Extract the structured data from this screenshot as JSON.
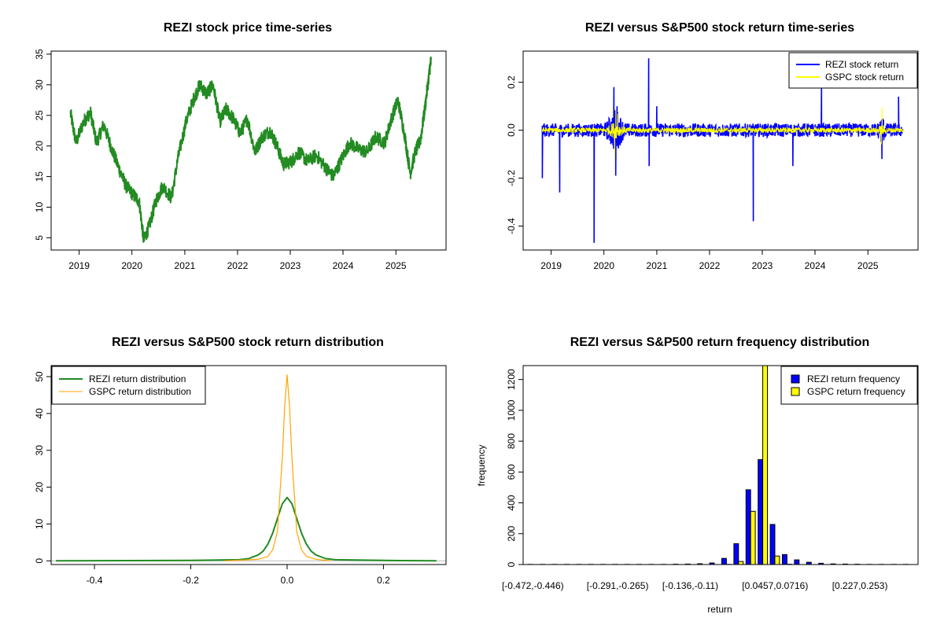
{
  "colors": {
    "price": "#228B22",
    "rezi_return": "#0000FF",
    "gspc_return": "#FFFF00",
    "rezi_density": "#228B22",
    "gspc_density": "#FFA500",
    "axis": "#000000"
  },
  "chart_data": [
    {
      "type": "line",
      "title": "REZI stock price time-series",
      "xlabel": "",
      "ylabel": "",
      "x_ticks": [
        "2019",
        "2020",
        "2021",
        "2022",
        "2023",
        "2024",
        "2025"
      ],
      "y_ticks": [
        "5",
        "10",
        "15",
        "20",
        "25",
        "30",
        "35"
      ],
      "xlim": [
        "2018-06-21",
        "2025-12-14"
      ],
      "ylim": [
        3,
        35.5
      ],
      "grid": false,
      "series": [
        {
          "color": "#228B22",
          "x": [
            "2018-11-01",
            "2018-12-10",
            "2019-02-01",
            "2019-03-20",
            "2019-05-01",
            "2019-06-20",
            "2019-08-15",
            "2019-10-01",
            "2019-11-20",
            "2020-01-10",
            "2020-02-20",
            "2020-03-23",
            "2020-05-01",
            "2020-06-15",
            "2020-08-01",
            "2020-10-01",
            "2020-11-15",
            "2021-01-10",
            "2021-03-01",
            "2021-04-15",
            "2021-06-01",
            "2021-07-15",
            "2021-09-01",
            "2021-10-15",
            "2021-12-01",
            "2022-01-20",
            "2022-03-10",
            "2022-05-01",
            "2022-06-20",
            "2022-08-15",
            "2022-10-01",
            "2022-11-15",
            "2023-01-10",
            "2023-03-01",
            "2023-05-01",
            "2023-07-01",
            "2023-09-01",
            "2023-10-25",
            "2023-12-15",
            "2024-02-15",
            "2024-04-15",
            "2024-06-15",
            "2024-08-15",
            "2024-10-15",
            "2024-12-01",
            "2025-01-15",
            "2025-03-01",
            "2025-04-10",
            "2025-05-15",
            "2025-06-20",
            "2025-07-20",
            "2025-08-20",
            "2025-09-01"
          ],
          "y": [
            25.5,
            20.5,
            24,
            25.5,
            20.5,
            23.5,
            19.5,
            16.5,
            13.5,
            12,
            11,
            4.5,
            7,
            11,
            13.5,
            11.5,
            18,
            24,
            27.5,
            30,
            28.5,
            30,
            24,
            26,
            24.5,
            22,
            24.5,
            19,
            21.5,
            22.5,
            20,
            17,
            17.5,
            19,
            17.5,
            18.5,
            16.5,
            15,
            17.5,
            20.5,
            19.5,
            19,
            21.5,
            20.5,
            24.5,
            27.5,
            22,
            15.5,
            19,
            21,
            26,
            32,
            34
          ]
        }
      ]
    },
    {
      "type": "line",
      "title": "REZI versus S&P500 stock return time-series",
      "xlabel": "",
      "ylabel": "",
      "x_ticks": [
        "2019",
        "2020",
        "2021",
        "2022",
        "2023",
        "2024",
        "2025"
      ],
      "y_ticks": [
        "-0.4",
        "-0.2",
        "0.0",
        "0.2"
      ],
      "xlim": [
        "2018-06-21",
        "2025-12-14"
      ],
      "ylim": [
        -0.5,
        0.33
      ],
      "legend": "top-right",
      "series": [
        {
          "name": "REZI stock return",
          "color": "#0000FF",
          "x": [
            "2018-11-01",
            "2019-03-01",
            "2019-10-25",
            "2020-03-10",
            "2020-03-23",
            "2020-04-01",
            "2020-11-06",
            "2020-11-09",
            "2021-01-01",
            "2022-10-31",
            "2023-08-01",
            "2024-02-15",
            "2025-04-08",
            "2025-08-01"
          ],
          "y": [
            -0.2,
            -0.26,
            -0.47,
            0.18,
            -0.19,
            0.1,
            0.3,
            -0.15,
            0.1,
            -0.38,
            -0.15,
            0.18,
            -0.12,
            0.14
          ]
        },
        {
          "name": "GSPC stock return",
          "color": "#FFFF00",
          "x": [
            "2020-03-16",
            "2020-03-24",
            "2020-04-06",
            "2025-04-04",
            "2025-04-09"
          ],
          "y": [
            -0.12,
            0.09,
            0.07,
            -0.06,
            0.095
          ]
        }
      ]
    },
    {
      "type": "line",
      "title": "REZI versus S&P500 stock return distribution",
      "xlabel": "",
      "ylabel": "",
      "x_ticks": [
        "-0.4",
        "-0.2",
        "0.0",
        "0.2"
      ],
      "y_ticks": [
        "0",
        "10",
        "20",
        "30",
        "40",
        "50"
      ],
      "xlim": [
        -0.49,
        0.33
      ],
      "ylim": [
        -1,
        53
      ],
      "legend": "top-left",
      "series": [
        {
          "name": "REZI return distribution",
          "color": "#228B22",
          "x": [
            -0.48,
            -0.2,
            -0.1,
            -0.08,
            -0.06,
            -0.05,
            -0.04,
            -0.03,
            -0.02,
            -0.01,
            0.0,
            0.01,
            0.02,
            0.03,
            0.04,
            0.05,
            0.06,
            0.08,
            0.1,
            0.2,
            0.31
          ],
          "y": [
            0,
            0.1,
            0.3,
            0.6,
            1.6,
            2.6,
            4.5,
            7.5,
            11.5,
            15.5,
            17.2,
            15.5,
            11.5,
            7.5,
            4.5,
            2.6,
            1.6,
            0.6,
            0.3,
            0.1,
            0
          ]
        },
        {
          "name": "GSPC return distribution",
          "color": "#FFA500",
          "x": [
            -0.13,
            -0.06,
            -0.04,
            -0.03,
            -0.02,
            -0.01,
            -0.005,
            0.0,
            0.005,
            0.01,
            0.02,
            0.03,
            0.04,
            0.06,
            0.09
          ],
          "y": [
            0,
            0.4,
            1.2,
            3,
            8,
            28,
            42,
            50.5,
            42,
            28,
            8,
            3,
            1.2,
            0.4,
            0
          ]
        }
      ]
    },
    {
      "type": "bar",
      "title": "REZI versus S&P500 return frequency distribution",
      "xlabel": "return",
      "ylabel": "frequency",
      "x_tick_labels": [
        "[-0.472,-0.446)",
        "[-0.291,-0.265)",
        "[-0.136,-0.11)",
        "[0.0457,0.0716)",
        "[0.227,0.253)"
      ],
      "x_tick_bins": [
        0,
        7,
        13,
        20,
        27
      ],
      "y_ticks": [
        "0",
        "200",
        "400",
        "600",
        "800",
        "1000",
        "1200"
      ],
      "ylim": [
        0,
        1290
      ],
      "legend": "top-right",
      "series": [
        {
          "name": "REZI return frequency",
          "color": "#0000FF",
          "values": [
            1,
            1,
            1,
            1,
            1,
            1,
            1,
            1,
            1,
            1,
            1,
            1,
            2,
            3,
            5,
            10,
            40,
            135,
            485,
            680,
            260,
            65,
            30,
            15,
            8,
            4,
            3,
            2,
            1,
            1,
            1,
            1
          ]
        },
        {
          "name": "GSPC return frequency",
          "color": "#FFFF00",
          "values": [
            0,
            0,
            0,
            0,
            0,
            0,
            0,
            0,
            0,
            0,
            0,
            0,
            0,
            0,
            0,
            0,
            1,
            20,
            345,
            1290,
            55,
            2,
            0,
            0,
            0,
            0,
            0,
            0,
            0,
            0,
            0,
            0
          ]
        }
      ]
    }
  ]
}
